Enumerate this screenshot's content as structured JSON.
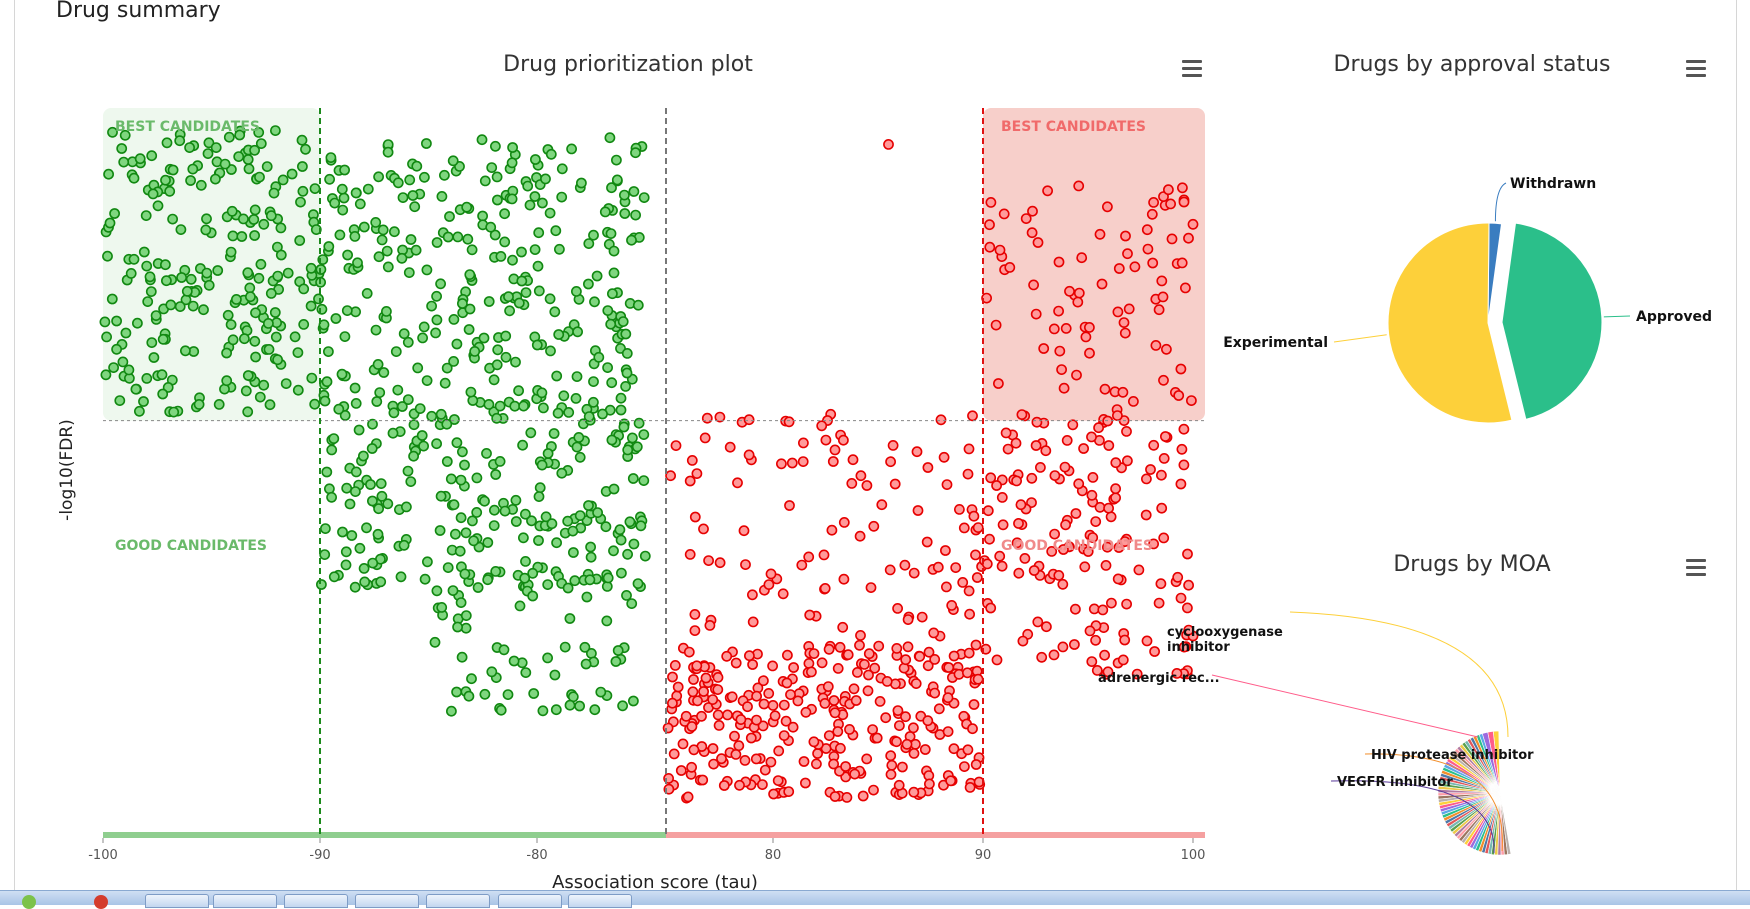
{
  "page": {
    "section_title": "Drug summary"
  },
  "colors": {
    "negative": "#2ca02c",
    "negative_stroke": "#118811",
    "positive": "#ff5555",
    "positive_stroke": "#e60000",
    "best_neg_bg": "#eef8ee",
    "best_pos_bg": "#f7cfca",
    "approved": "#2bbf8a",
    "experimental": "#fdd03a",
    "withdrawn": "#3a7dc0"
  },
  "chart_data": [
    {
      "type": "scatter",
      "title": "Drug prioritization plot",
      "xlabel": "Association score (tau)",
      "ylabel": "-log10(FDR)",
      "xlim": [
        -100,
        100
      ],
      "xticks": [
        "-100",
        "-90",
        "-80",
        "80",
        "90",
        "100"
      ],
      "axis_note": "x axis is broken between -80 and 80",
      "regions": [
        {
          "label": "BEST CANDIDATES",
          "side": "negative",
          "position": "top-left"
        },
        {
          "label": "BEST CANDIDATES",
          "side": "positive",
          "position": "top-right"
        },
        {
          "label": "GOOD CANDIDATES",
          "side": "negative",
          "position": "middle-left"
        },
        {
          "label": "GOOD CANDIDATES",
          "side": "positive",
          "position": "middle-right"
        }
      ],
      "thresholds": {
        "x_negative": -90,
        "x_positive": 90,
        "y_best_fraction": 0.57
      },
      "series": [
        {
          "side": "negative",
          "clusters": [
            {
              "x": [
                -100,
                -90
              ],
              "y": [
                0.58,
                0.97
              ],
              "count": 240
            },
            {
              "x": [
                -90,
                -75
              ],
              "y": [
                0.58,
                0.96
              ],
              "count": 300
            },
            {
              "x": [
                -90,
                -75
              ],
              "y": [
                0.34,
                0.6
              ],
              "count": 230
            },
            {
              "x": [
                -85,
                -75
              ],
              "y": [
                0.17,
                0.36
              ],
              "count": 70
            }
          ]
        },
        {
          "side": "positive",
          "clusters": [
            {
              "x": [
                75,
                90
              ],
              "y": [
                0.05,
                0.26
              ],
              "count": 300
            },
            {
              "x": [
                75,
                90
              ],
              "y": [
                0.26,
                0.58
              ],
              "count": 110
            },
            {
              "x": [
                90,
                100
              ],
              "y": [
                0.58,
                0.9
              ],
              "count": 80
            },
            {
              "x": [
                90,
                100
              ],
              "y": [
                0.22,
                0.58
              ],
              "count": 160
            }
          ],
          "outliers": [
            {
              "x": 85.5,
              "y": 0.95
            },
            {
              "x": 100,
              "y": 0.84
            },
            {
              "x": 99,
              "y": 0.82
            }
          ]
        }
      ]
    },
    {
      "type": "pie",
      "title": "Drugs by approval status",
      "slices": [
        {
          "name": "Withdrawn",
          "value": 2
        },
        {
          "name": "Approved",
          "value": 44
        },
        {
          "name": "Experimental",
          "value": 54
        }
      ]
    },
    {
      "type": "pie",
      "title": "Drugs by MOA",
      "visible_labels": [
        "cyclooxygenase inhibitor",
        "adrenergic rec...",
        "HIV protease inhibitor",
        "VEGFR inhibitor"
      ],
      "slice_count": 60
    }
  ]
}
